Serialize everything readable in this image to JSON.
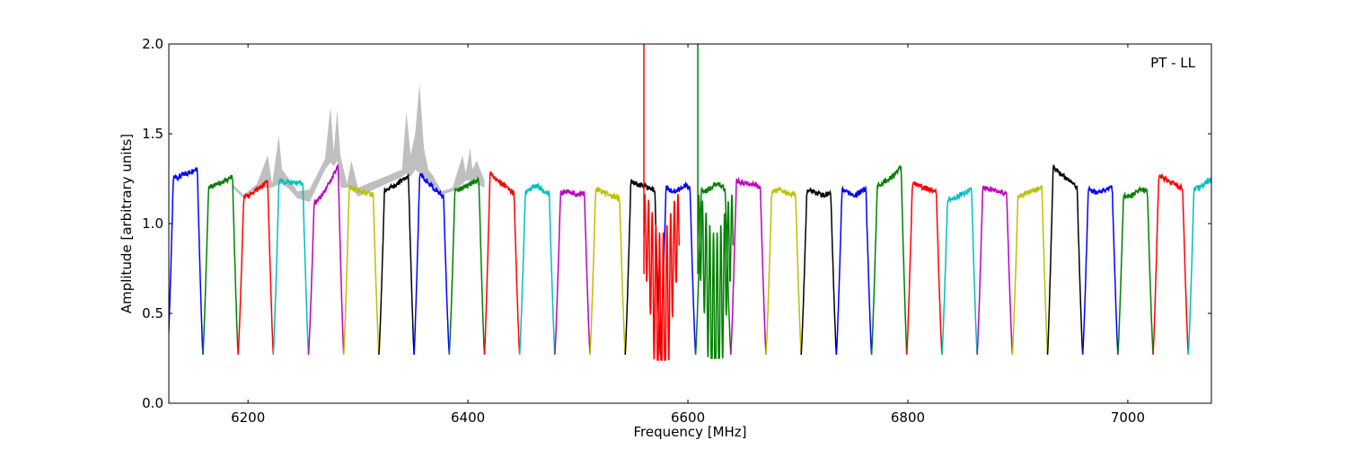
{
  "chart_data": {
    "type": "line",
    "title": "",
    "xlabel": "Frequency [MHz]",
    "ylabel": "Amplitude [arbitrary units]",
    "annotation": "PT - LL",
    "xlim": [
      6128,
      7076
    ],
    "ylim": [
      0.0,
      2.0
    ],
    "xticks": [
      6200,
      6400,
      6600,
      6800,
      7000
    ],
    "yticks": [
      0.0,
      0.5,
      1.0,
      1.5,
      2.0
    ],
    "xtick_labels": [
      "6200",
      "6400",
      "6600",
      "6800",
      "7000"
    ],
    "ytick_labels": [
      "0.0",
      "0.5",
      "1.0",
      "1.5",
      "2.0"
    ],
    "grid": false,
    "background_band": {
      "color": "#bfbfbf",
      "x": [
        6186,
        6196,
        6208,
        6218,
        6222,
        6228,
        6231,
        6236,
        6245,
        6256,
        6270,
        6275,
        6278,
        6281,
        6284,
        6290,
        6294,
        6300,
        6340,
        6344,
        6348,
        6352,
        6356,
        6360,
        6364,
        6368,
        6376,
        6386,
        6395,
        6398,
        6402,
        6404,
        6408,
        6415
      ],
      "upper": [
        1.22,
        1.16,
        1.22,
        1.38,
        1.22,
        1.49,
        1.3,
        1.26,
        1.18,
        1.19,
        1.36,
        1.65,
        1.4,
        1.63,
        1.38,
        1.22,
        1.35,
        1.2,
        1.3,
        1.62,
        1.38,
        1.5,
        1.78,
        1.42,
        1.3,
        1.27,
        1.18,
        1.2,
        1.38,
        1.28,
        1.42,
        1.3,
        1.35,
        1.24
      ],
      "lower": [
        1.2,
        1.14,
        1.2,
        1.2,
        1.2,
        1.22,
        1.22,
        1.2,
        1.14,
        1.12,
        1.3,
        1.34,
        1.32,
        1.35,
        1.2,
        1.2,
        1.2,
        1.15,
        1.26,
        1.28,
        1.26,
        1.3,
        1.28,
        1.26,
        1.22,
        1.2,
        1.16,
        1.18,
        1.22,
        1.24,
        1.24,
        1.22,
        1.22,
        1.2
      ]
    },
    "channel": {
      "width": 32,
      "depth": 0.27,
      "series": [
        {
          "center": 6143,
          "color": "#0000ff",
          "level": 1.25,
          "peak": 1.33,
          "shape": "rising"
        },
        {
          "center": 6175,
          "color": "#008000",
          "level": 1.2,
          "peak": 1.28,
          "shape": "rising"
        },
        {
          "center": 6207,
          "color": "#ff0000",
          "level": 1.14,
          "peak": 1.27,
          "shape": "rising"
        },
        {
          "center": 6239,
          "color": "#00bfbf",
          "level": 1.22,
          "peak": 1.24,
          "shape": "falling"
        },
        {
          "center": 6271,
          "color": "#bf00bf",
          "level": 1.1,
          "peak": 1.39,
          "shape": "rising"
        },
        {
          "center": 6303,
          "color": "#bfbf00",
          "level": 1.15,
          "peak": 1.22,
          "shape": "falling"
        },
        {
          "center": 6335,
          "color": "#000000",
          "level": 1.18,
          "peak": 1.3,
          "shape": "rising"
        },
        {
          "center": 6367,
          "color": "#0000ff",
          "level": 1.12,
          "peak": 1.33,
          "shape": "falling"
        },
        {
          "center": 6399,
          "color": "#008000",
          "level": 1.18,
          "peak": 1.27,
          "shape": "rising"
        },
        {
          "center": 6431,
          "color": "#ff0000",
          "level": 1.15,
          "peak": 1.32,
          "shape": "falling"
        },
        {
          "center": 6463,
          "color": "#00bfbf",
          "level": 1.17,
          "peak": 1.21,
          "shape": "flat"
        },
        {
          "center": 6495,
          "color": "#bf00bf",
          "level": 1.16,
          "peak": 1.18,
          "shape": "flat"
        },
        {
          "center": 6527,
          "color": "#bfbf00",
          "level": 1.13,
          "peak": 1.21,
          "shape": "falling"
        },
        {
          "center": 6559,
          "color": "#000000",
          "level": 1.18,
          "peak": 1.25,
          "shape": "falling"
        },
        {
          "center": 6591,
          "color": "#0000ff",
          "level": 1.18,
          "peak": 1.21,
          "shape": "flat"
        },
        {
          "center": 6623,
          "color": "#008000",
          "level": 1.18,
          "peak": 1.22,
          "shape": "flat"
        },
        {
          "center": 6655,
          "color": "#bf00bf",
          "level": 1.2,
          "peak": 1.25,
          "shape": "falling"
        },
        {
          "center": 6687,
          "color": "#bfbf00",
          "level": 1.16,
          "peak": 1.19,
          "shape": "flat"
        },
        {
          "center": 6719,
          "color": "#000000",
          "level": 1.16,
          "peak": 1.18,
          "shape": "flat"
        },
        {
          "center": 6751,
          "color": "#0000ff",
          "level": 1.16,
          "peak": 1.19,
          "shape": "flat"
        },
        {
          "center": 6783,
          "color": "#008000",
          "level": 1.2,
          "peak": 1.35,
          "shape": "rising"
        },
        {
          "center": 6815,
          "color": "#ff0000",
          "level": 1.17,
          "peak": 1.24,
          "shape": "falling"
        },
        {
          "center": 6847,
          "color": "#00bfbf",
          "level": 1.13,
          "peak": 1.21,
          "shape": "rising"
        },
        {
          "center": 6879,
          "color": "#bf00bf",
          "level": 1.16,
          "peak": 1.21,
          "shape": "falling"
        },
        {
          "center": 6911,
          "color": "#bfbf00",
          "level": 1.15,
          "peak": 1.22,
          "shape": "rising"
        },
        {
          "center": 6943,
          "color": "#000000",
          "level": 1.18,
          "peak": 1.36,
          "shape": "falling"
        },
        {
          "center": 6975,
          "color": "#0000ff",
          "level": 1.17,
          "peak": 1.2,
          "shape": "flat"
        },
        {
          "center": 7007,
          "color": "#008000",
          "level": 1.15,
          "peak": 1.19,
          "shape": "flat"
        },
        {
          "center": 7039,
          "color": "#ff0000",
          "level": 1.18,
          "peak": 1.3,
          "shape": "falling"
        },
        {
          "center": 7071,
          "color": "#00bfbf",
          "level": 1.18,
          "peak": 1.32,
          "shape": "rising"
        }
      ]
    },
    "spikes": [
      {
        "x": 6560,
        "color": "#ff0000",
        "top": 2.0,
        "bottom": 0.72
      },
      {
        "x": 6609,
        "color": "#008000",
        "top": 2.0,
        "bottom": 0.72
      }
    ],
    "oscillations": [
      {
        "color": "#ff0000",
        "x_start": 6560,
        "x_end": 6592,
        "min": 0.24,
        "max": 1.35
      },
      {
        "color": "#008000",
        "x_start": 6609,
        "x_end": 6641,
        "min": 0.25,
        "max": 1.34
      }
    ]
  }
}
